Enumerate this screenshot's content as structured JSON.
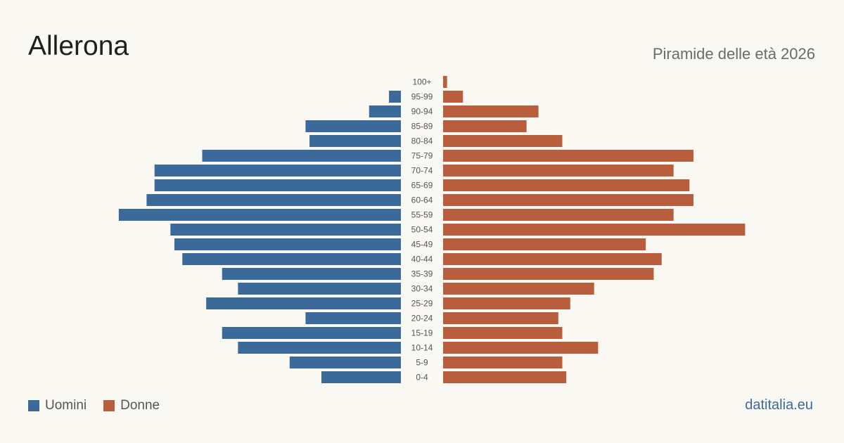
{
  "header": {
    "title": "Allerona",
    "subtitle": "Piramide delle età 2026"
  },
  "legend": {
    "men_label": "Uomini",
    "women_label": "Donne"
  },
  "brand": "datitalia.eu",
  "colors": {
    "men": "#3b6a9a",
    "women": "#b95e3c",
    "background": "#faf8f3"
  },
  "chart_data": {
    "type": "bar",
    "orientation": "horizontal-pyramid",
    "categories": [
      "100+",
      "95-99",
      "90-94",
      "85-89",
      "80-84",
      "75-79",
      "70-74",
      "65-69",
      "60-64",
      "55-59",
      "50-54",
      "45-49",
      "40-44",
      "35-39",
      "30-34",
      "25-29",
      "20-24",
      "15-19",
      "10-14",
      "5-9",
      "0-4"
    ],
    "series": [
      {
        "name": "Uomini",
        "values": [
          0,
          3,
          8,
          24,
          23,
          50,
          62,
          62,
          64,
          71,
          58,
          57,
          55,
          45,
          41,
          49,
          24,
          45,
          41,
          28,
          20
        ]
      },
      {
        "name": "Donne",
        "values": [
          1,
          5,
          24,
          21,
          30,
          63,
          58,
          62,
          63,
          58,
          76,
          51,
          55,
          53,
          38,
          32,
          29,
          30,
          39,
          30,
          31
        ]
      }
    ]
  }
}
